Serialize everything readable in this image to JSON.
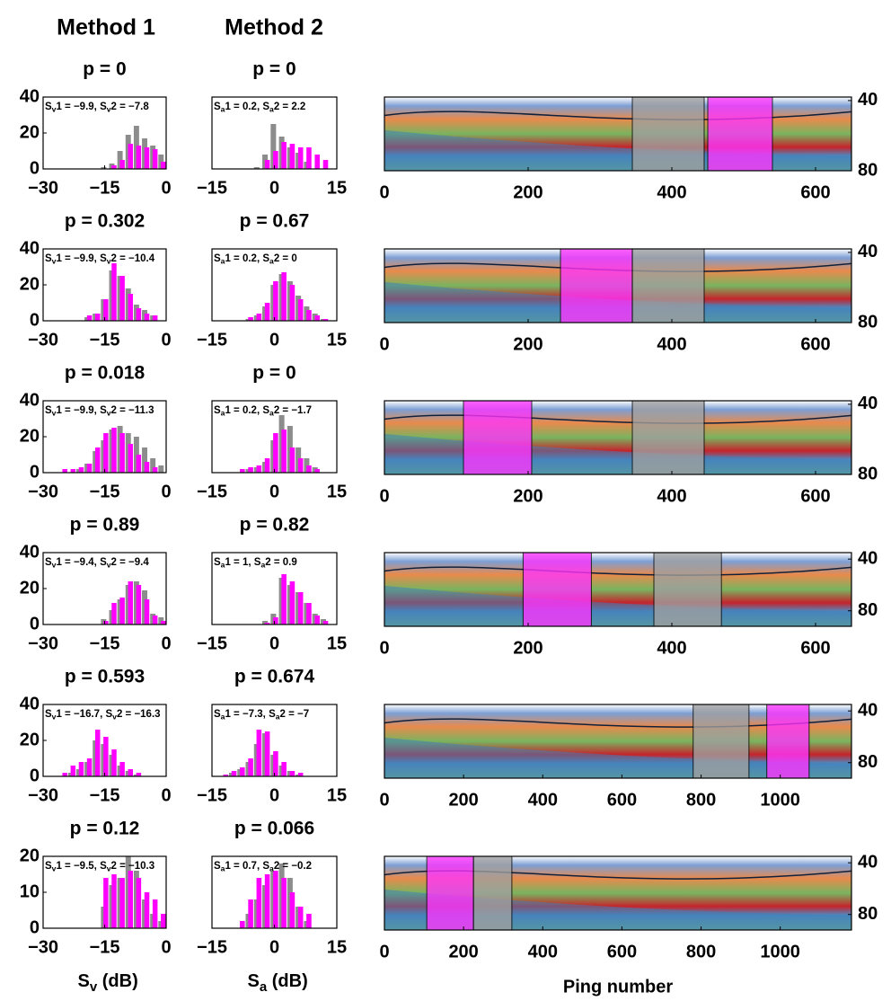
{
  "headers": [
    "Method 1",
    "Method 2"
  ],
  "chart_data": [
    {
      "type": "histogram",
      "title": "p = 0",
      "annotation": [
        "S",
        "v",
        "1 = −9.9, S",
        "v",
        "2 = −7.8"
      ],
      "bins": [
        -30,
        -28,
        -26,
        -24,
        -22,
        -20,
        -18,
        -16,
        -14,
        -12,
        -10,
        -8,
        -6,
        -4,
        -2,
        0
      ],
      "series": [
        {
          "color": "#8c8c8c",
          "values": [
            0,
            0,
            0,
            0,
            0,
            0,
            0,
            1,
            3,
            10,
            19,
            24,
            17,
            13,
            8
          ]
        },
        {
          "color": "#ff00ff",
          "values": [
            0,
            0,
            0,
            0,
            0,
            0,
            0,
            0,
            2,
            5,
            14,
            13,
            12,
            11,
            4
          ]
        }
      ],
      "xlim": [
        -30,
        0
      ],
      "xticks": [
        {
          "value": -30,
          "label": "−30"
        },
        {
          "value": -15,
          "label": "−15"
        },
        0
      ],
      "ylim": [
        0,
        40
      ],
      "yticks": [
        0,
        20,
        40
      ]
    },
    {
      "type": "histogram",
      "title": "p = 0",
      "annotation": [
        "S",
        "a",
        "1 = 0.2, S",
        "a",
        "2 = 2.2"
      ],
      "bins": [
        -15,
        -13,
        -11,
        -9,
        -7,
        -5,
        -3,
        -1,
        1,
        3,
        5,
        7,
        9,
        11,
        13,
        15
      ],
      "series": [
        {
          "color": "#8c8c8c",
          "values": [
            0,
            0,
            0,
            0,
            0,
            1,
            8,
            25,
            18,
            12,
            9,
            4,
            0,
            0,
            0
          ]
        },
        {
          "color": "#ff00ff",
          "values": [
            0,
            0,
            0,
            0,
            0,
            0,
            5,
            10,
            15,
            14,
            12,
            12,
            8,
            5,
            0
          ]
        }
      ],
      "xlim": [
        -15,
        15
      ],
      "xticks": [
        {
          "value": -15,
          "label": "−15"
        },
        0,
        15
      ],
      "ylim": [
        0,
        40
      ]
    },
    {
      "type": "echogram",
      "xlim": [
        0,
        650
      ],
      "xticks": [
        0,
        200,
        400,
        600
      ],
      "ylim": [
        80,
        38
      ],
      "yticks": [
        40,
        80
      ],
      "regions": [
        {
          "color": "#a0a0a0",
          "x": [
            345,
            445
          ]
        },
        {
          "color": "#ff33ff",
          "x": [
            450,
            540
          ]
        }
      ]
    },
    {
      "type": "histogram",
      "title": "p = 0.302",
      "annotation": [
        "S",
        "v",
        "1 = −9.9, S",
        "v",
        "2 = −10.4"
      ],
      "bins": [
        -30,
        -28,
        -26,
        -24,
        -22,
        -20,
        -18,
        -16,
        -14,
        -12,
        -10,
        -8,
        -6,
        -4,
        -2,
        0
      ],
      "series": [
        {
          "color": "#8c8c8c",
          "values": [
            0,
            0,
            0,
            0,
            0,
            2,
            4,
            12,
            28,
            25,
            18,
            9,
            6,
            3,
            0
          ]
        },
        {
          "color": "#ff00ff",
          "values": [
            0,
            0,
            0,
            0,
            0,
            3,
            4,
            12,
            32,
            25,
            15,
            7,
            4,
            3,
            0
          ]
        }
      ],
      "xlim": [
        -30,
        0
      ],
      "xticks": [
        {
          "value": -30,
          "label": "−30"
        },
        {
          "value": -15,
          "label": "−15"
        },
        0
      ],
      "ylim": [
        0,
        40
      ],
      "yticks": [
        0,
        20,
        40
      ]
    },
    {
      "type": "histogram",
      "title": "p = 0.67",
      "annotation": [
        "S",
        "a",
        "1 = 0.2, S",
        "a",
        "2 = 0"
      ],
      "bins": [
        -15,
        -13,
        -11,
        -9,
        -7,
        -5,
        -3,
        -1,
        1,
        3,
        5,
        7,
        9,
        11,
        13,
        15
      ],
      "series": [
        {
          "color": "#8c8c8c",
          "values": [
            0,
            0,
            0,
            0,
            1,
            3,
            8,
            20,
            26,
            22,
            14,
            8,
            4,
            1,
            0
          ]
        },
        {
          "color": "#ff00ff",
          "values": [
            0,
            0,
            0,
            0,
            2,
            4,
            10,
            22,
            27,
            20,
            12,
            6,
            3,
            1,
            0
          ]
        }
      ],
      "xlim": [
        -15,
        15
      ],
      "xticks": [
        {
          "value": -15,
          "label": "−15"
        },
        0,
        15
      ],
      "ylim": [
        0,
        40
      ]
    },
    {
      "type": "echogram",
      "xlim": [
        0,
        650
      ],
      "xticks": [
        0,
        200,
        400,
        600
      ],
      "ylim": [
        80,
        38
      ],
      "yticks": [
        40,
        80
      ],
      "regions": [
        {
          "color": "#ff33ff",
          "x": [
            245,
            345
          ]
        },
        {
          "color": "#a0a0a0",
          "x": [
            345,
            445
          ]
        }
      ]
    },
    {
      "type": "histogram",
      "title": "p = 0.018",
      "annotation": [
        "S",
        "v",
        "1 = −9.9, S",
        "v",
        "2 = −11.3"
      ],
      "bins": [
        -30,
        -28,
        -26,
        -24,
        -22,
        -20,
        -18,
        -16,
        -14,
        -12,
        -10,
        -8,
        -6,
        -4,
        -2,
        0
      ],
      "series": [
        {
          "color": "#8c8c8c",
          "values": [
            0,
            0,
            0,
            0,
            2,
            5,
            12,
            18,
            24,
            26,
            22,
            20,
            14,
            8,
            4
          ]
        },
        {
          "color": "#ff00ff",
          "values": [
            0,
            0,
            2,
            2,
            3,
            5,
            14,
            22,
            25,
            22,
            16,
            10,
            6,
            3,
            0
          ]
        }
      ],
      "xlim": [
        -30,
        0
      ],
      "xticks": [
        {
          "value": -30,
          "label": "−30"
        },
        {
          "value": -15,
          "label": "−15"
        },
        0
      ],
      "ylim": [
        0,
        40
      ],
      "yticks": [
        0,
        20,
        40
      ]
    },
    {
      "type": "histogram",
      "title": "p = 0",
      "annotation": [
        "S",
        "a",
        "1 = 0.2, S",
        "a",
        "2 = −1.7"
      ],
      "bins": [
        -15,
        -13,
        -11,
        -9,
        -7,
        -5,
        -3,
        -1,
        1,
        3,
        5,
        7,
        9,
        11,
        13,
        15
      ],
      "series": [
        {
          "color": "#8c8c8c",
          "values": [
            0,
            0,
            0,
            0,
            2,
            3,
            6,
            18,
            32,
            26,
            14,
            8,
            3,
            0,
            0
          ]
        },
        {
          "color": "#ff00ff",
          "values": [
            0,
            0,
            0,
            2,
            3,
            4,
            8,
            22,
            24,
            14,
            8,
            4,
            2,
            0,
            0
          ]
        }
      ],
      "xlim": [
        -15,
        15
      ],
      "xticks": [
        {
          "value": -15,
          "label": "−15"
        },
        0,
        15
      ],
      "ylim": [
        0,
        40
      ]
    },
    {
      "type": "echogram",
      "xlim": [
        0,
        650
      ],
      "xticks": [
        0,
        200,
        400,
        600
      ],
      "ylim": [
        80,
        38
      ],
      "yticks": [
        40,
        80
      ],
      "regions": [
        {
          "color": "#ff33ff",
          "x": [
            110,
            205
          ]
        },
        {
          "color": "#a0a0a0",
          "x": [
            345,
            445
          ]
        }
      ]
    },
    {
      "type": "histogram",
      "title": "p = 0.89",
      "annotation": [
        "S",
        "v",
        "1 = −9.4, S",
        "v",
        "2 = −9.4"
      ],
      "bins": [
        -30,
        -28,
        -26,
        -24,
        -22,
        -20,
        -18,
        -16,
        -14,
        -12,
        -10,
        -8,
        -6,
        -4,
        -2,
        0
      ],
      "series": [
        {
          "color": "#8c8c8c",
          "values": [
            0,
            0,
            0,
            0,
            0,
            0,
            0,
            3,
            8,
            14,
            22,
            24,
            19,
            6,
            4
          ]
        },
        {
          "color": "#ff00ff",
          "values": [
            0,
            0,
            0,
            0,
            0,
            0,
            0,
            2,
            12,
            15,
            24,
            22,
            14,
            5,
            2
          ]
        }
      ],
      "xlim": [
        -30,
        0
      ],
      "xticks": [
        {
          "value": -30,
          "label": "−30"
        },
        {
          "value": -15,
          "label": "−15"
        },
        0
      ],
      "ylim": [
        0,
        40
      ],
      "yticks": [
        0,
        20,
        40
      ]
    },
    {
      "type": "histogram",
      "title": "p = 0.82",
      "annotation": [
        "S",
        "a",
        "1 = 1, S",
        "a",
        "2 = 0.9"
      ],
      "bins": [
        -15,
        -13,
        -11,
        -9,
        -7,
        -5,
        -3,
        -1,
        1,
        3,
        5,
        7,
        9,
        11,
        13,
        15
      ],
      "series": [
        {
          "color": "#8c8c8c",
          "values": [
            0,
            0,
            0,
            0,
            0,
            0,
            2,
            6,
            26,
            22,
            18,
            12,
            6,
            3,
            0
          ]
        },
        {
          "color": "#ff00ff",
          "values": [
            0,
            0,
            0,
            0,
            0,
            0,
            1,
            4,
            28,
            24,
            18,
            12,
            5,
            2,
            0
          ]
        }
      ],
      "xlim": [
        -15,
        15
      ],
      "xticks": [
        {
          "value": -15,
          "label": "−15"
        },
        0,
        15
      ],
      "ylim": [
        0,
        40
      ]
    },
    {
      "type": "echogram",
      "xlim": [
        0,
        650
      ],
      "xticks": [
        0,
        200,
        400,
        600
      ],
      "ylim": [
        92,
        35
      ],
      "yticks": [
        40,
        80
      ],
      "regions": [
        {
          "color": "#ff33ff",
          "x": [
            193,
            288
          ]
        },
        {
          "color": "#a0a0a0",
          "x": [
            375,
            469
          ]
        }
      ]
    },
    {
      "type": "histogram",
      "title": "p = 0.593",
      "annotation": [
        "S",
        "v",
        "1 = −16.7, S",
        "v",
        "2 = −16.3"
      ],
      "bins": [
        -30,
        -28,
        -26,
        -24,
        -22,
        -20,
        -18,
        -16,
        -14,
        -12,
        -10,
        -8,
        -6,
        -4,
        -2,
        0
      ],
      "series": [
        {
          "color": "#8c8c8c",
          "values": [
            0,
            0,
            0,
            2,
            4,
            8,
            20,
            18,
            12,
            6,
            3,
            1,
            0,
            0,
            0
          ]
        },
        {
          "color": "#ff00ff",
          "values": [
            0,
            0,
            2,
            6,
            8,
            10,
            26,
            22,
            15,
            8,
            4,
            2,
            0,
            0,
            0
          ]
        }
      ],
      "xlim": [
        -30,
        0
      ],
      "xticks": [
        {
          "value": -30,
          "label": "−30"
        },
        {
          "value": -15,
          "label": "−15"
        },
        0
      ],
      "ylim": [
        0,
        40
      ],
      "yticks": [
        0,
        20,
        40
      ]
    },
    {
      "type": "histogram",
      "title": "p = 0.674",
      "annotation": [
        "S",
        "a",
        "1 = −7.3, S",
        "a",
        "2 = −7"
      ],
      "bins": [
        -15,
        -13,
        -11,
        -9,
        -7,
        -5,
        -3,
        -1,
        1,
        3,
        5,
        7,
        9,
        11,
        13,
        15
      ],
      "series": [
        {
          "color": "#8c8c8c",
          "values": [
            0,
            0,
            2,
            4,
            8,
            18,
            24,
            12,
            6,
            3,
            1,
            0,
            0,
            0,
            0
          ]
        },
        {
          "color": "#ff00ff",
          "values": [
            0,
            1,
            3,
            5,
            10,
            26,
            25,
            14,
            8,
            3,
            2,
            0,
            0,
            0,
            0
          ]
        }
      ],
      "xlim": [
        -15,
        15
      ],
      "xticks": [
        {
          "value": -15,
          "label": "−15"
        },
        0,
        15
      ],
      "ylim": [
        0,
        40
      ]
    },
    {
      "type": "echogram",
      "xlim": [
        0,
        1180
      ],
      "xticks": [
        0,
        200,
        400,
        600,
        800,
        1000
      ],
      "ylim": [
        92,
        35
      ],
      "yticks": [
        40,
        80
      ],
      "regions": [
        {
          "color": "#a0a0a0",
          "x": [
            780,
            921
          ]
        },
        {
          "color": "#ff33ff",
          "x": [
            966,
            1073
          ]
        }
      ]
    },
    {
      "type": "histogram",
      "title": "p = 0.12",
      "annotation": [
        "S",
        "v",
        "1 = −9.5, S",
        "v",
        "2 = −10.3"
      ],
      "bins": [
        -30,
        -28,
        -26,
        -24,
        -22,
        -20,
        -18,
        -16,
        -14,
        -12,
        -10,
        -8,
        -6,
        -4,
        -2,
        0
      ],
      "series": [
        {
          "color": "#8c8c8c",
          "values": [
            0,
            0,
            0,
            0,
            0,
            0,
            0,
            6,
            12,
            14,
            20,
            16,
            8,
            4,
            2
          ]
        },
        {
          "color": "#ff00ff",
          "values": [
            0,
            0,
            0,
            0,
            0,
            0,
            0,
            14,
            15,
            14,
            16,
            14,
            10,
            8,
            4
          ]
        }
      ],
      "xlim": [
        -30,
        0
      ],
      "xticks": [
        {
          "value": -30,
          "label": "−30"
        },
        {
          "value": -15,
          "label": "−15"
        },
        0
      ],
      "ylim": [
        0,
        20
      ],
      "yticks": [
        0,
        10,
        20
      ],
      "xlabel": [
        "S",
        "v",
        " (dB)"
      ]
    },
    {
      "type": "histogram",
      "title": "p = 0.066",
      "annotation": [
        "S",
        "a",
        "1 = 0.7, S",
        "a",
        "2 = −0.2"
      ],
      "bins": [
        -15,
        -13,
        -11,
        -9,
        -7,
        -5,
        -3,
        -1,
        1,
        3,
        5,
        7,
        9,
        11,
        13,
        15
      ],
      "series": [
        {
          "color": "#8c8c8c",
          "values": [
            0,
            0,
            0,
            0,
            4,
            8,
            12,
            16,
            18,
            14,
            6,
            2,
            0,
            0,
            0
          ]
        },
        {
          "color": "#ff00ff",
          "values": [
            0,
            0,
            0,
            2,
            8,
            14,
            15,
            16,
            14,
            10,
            6,
            4,
            0,
            0,
            0
          ]
        }
      ],
      "xlim": [
        -15,
        15
      ],
      "xticks": [
        {
          "value": -15,
          "label": "−15"
        },
        0,
        15
      ],
      "ylim": [
        0,
        20
      ],
      "xlabel": [
        "S",
        "a",
        " (dB)"
      ]
    },
    {
      "type": "echogram",
      "xlim": [
        0,
        1180
      ],
      "xticks": [
        0,
        200,
        400,
        600,
        800,
        1000
      ],
      "ylim": [
        92,
        35
      ],
      "yticks": [
        40,
        80
      ],
      "regions": [
        {
          "color": "#ff33ff",
          "x": [
            107,
            225
          ]
        },
        {
          "color": "#a0a0a0",
          "x": [
            225,
            322
          ]
        }
      ],
      "xlabel": "Ping number"
    }
  ]
}
